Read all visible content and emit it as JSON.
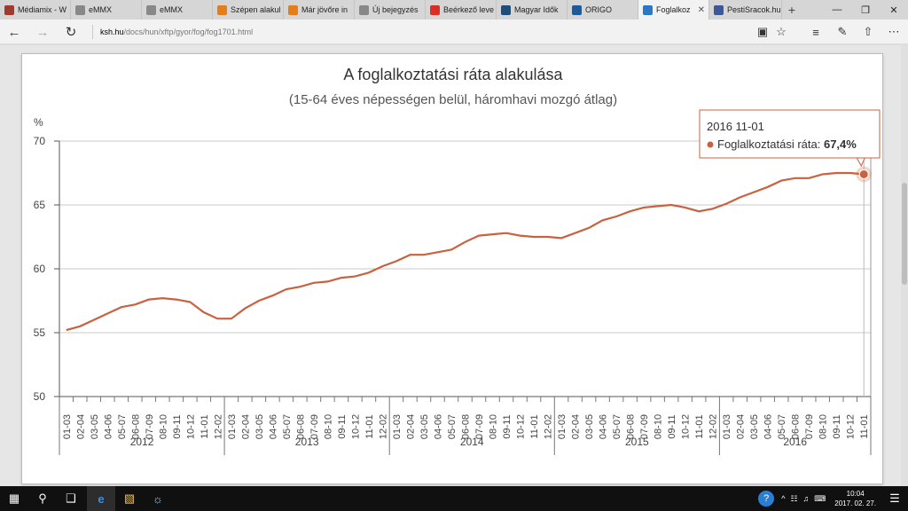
{
  "browser": {
    "tabs": [
      {
        "label": "Médiamix - W",
        "color": "#a03a2e"
      },
      {
        "label": "eMMX",
        "color": "#888888"
      },
      {
        "label": "eMMX",
        "color": "#888888"
      },
      {
        "label": "Szépen alakul",
        "color": "#e47d1a"
      },
      {
        "label": "Már jövőre in",
        "color": "#e47d1a"
      },
      {
        "label": "Új bejegyzés",
        "color": "#888888"
      },
      {
        "label": "Beérkező leve",
        "color": "#d93025"
      },
      {
        "label": "Magyar Idők",
        "color": "#1d4e7c"
      },
      {
        "label": "ORIGO",
        "color": "#1c5a9e"
      },
      {
        "label": "Foglalkoz",
        "color": "#2a79c4",
        "active": true
      },
      {
        "label": "PestiSracok.hu",
        "color": "#3b5998"
      }
    ],
    "url_domain": "ksh.hu",
    "url_path": "/docs/hun/xftp/gyor/fog/fog1701.html"
  },
  "taskbar": {
    "time": "10:04",
    "date": "2017. 02. 27."
  },
  "tooltip": {
    "date": "2016 11-01",
    "series": "Foglalkoztatási ráta",
    "value": "67,4%"
  },
  "chart_data": {
    "type": "line",
    "title": "A foglalkoztatási ráta alakulása",
    "subtitle": "(15-64 éves népességen belül, háromhavi mozgó átlag)",
    "ylabel": "%",
    "ylim": [
      50,
      70
    ],
    "yticks": [
      "50",
      "55",
      "60",
      "65",
      "70"
    ],
    "grid": true,
    "color": "#c8623f",
    "series": [
      {
        "name": "Foglalkoztatási ráta",
        "values": [
          55.2,
          55.5,
          56.0,
          56.5,
          57.0,
          57.2,
          57.6,
          57.7,
          57.6,
          57.4,
          56.6,
          56.1,
          56.1,
          56.9,
          57.5,
          57.9,
          58.4,
          58.6,
          58.9,
          59.0,
          59.3,
          59.4,
          59.7,
          60.2,
          60.6,
          61.1,
          61.1,
          61.3,
          61.5,
          62.1,
          62.6,
          62.7,
          62.8,
          62.6,
          62.5,
          62.5,
          62.4,
          62.8,
          63.2,
          63.8,
          64.1,
          64.5,
          64.8,
          64.9,
          65.0,
          64.8,
          64.5,
          64.7,
          65.1,
          65.6,
          66.0,
          66.4,
          66.9,
          67.1,
          67.1,
          67.4,
          67.5,
          67.5,
          67.4
        ]
      }
    ],
    "categories": [
      "01-03",
      "02-04",
      "03-05",
      "04-06",
      "05-07",
      "06-08",
      "07-09",
      "08-10",
      "09-11",
      "10-12",
      "11-01",
      "12-02",
      "01-03",
      "02-04",
      "03-05",
      "04-06",
      "05-07",
      "06-08",
      "07-09",
      "08-10",
      "09-11",
      "10-12",
      "11-01",
      "12-02",
      "01-03",
      "02-04",
      "03-05",
      "04-06",
      "05-07",
      "06-08",
      "07-09",
      "08-10",
      "09-11",
      "10-12",
      "11-01",
      "12-02",
      "01-03",
      "02-04",
      "03-05",
      "04-06",
      "05-07",
      "06-08",
      "07-09",
      "08-10",
      "09-11",
      "10-12",
      "11-01",
      "12-02",
      "01-03",
      "02-04",
      "03-05",
      "04-06",
      "05-07",
      "06-08",
      "07-09",
      "08-10",
      "09-11",
      "10-12",
      "11-01"
    ],
    "years": [
      "2012",
      "2013",
      "2014",
      "2015",
      "2016"
    ]
  }
}
